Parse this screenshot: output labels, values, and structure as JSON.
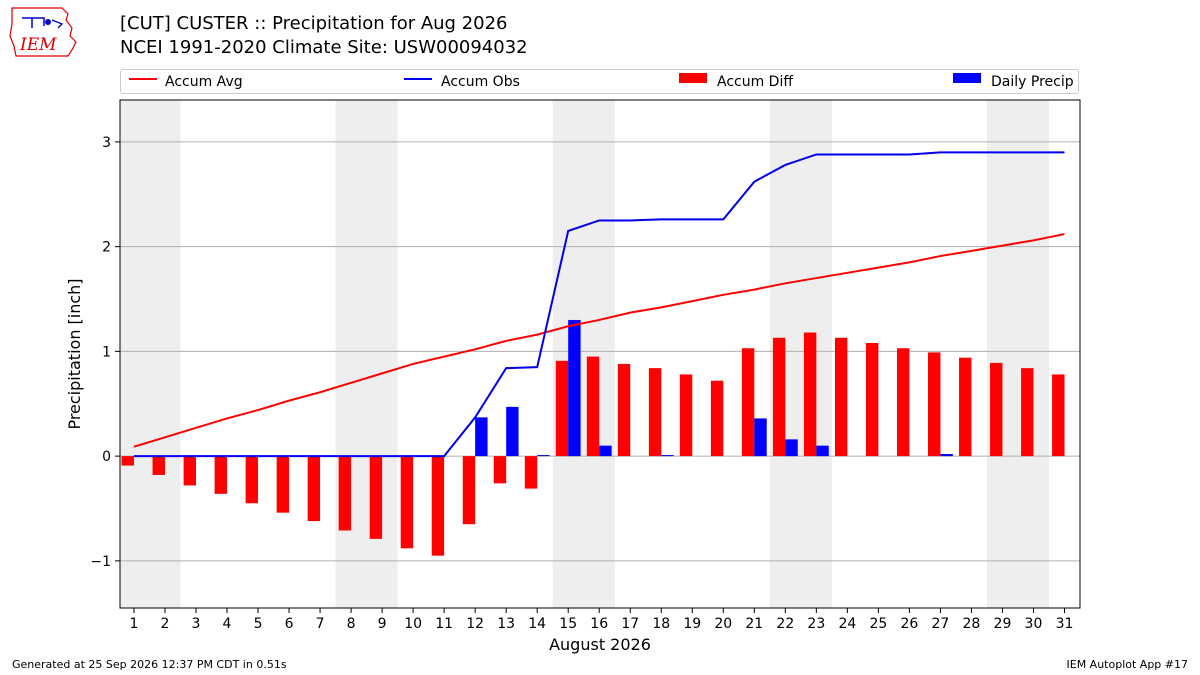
{
  "title_line1": "[CUT] CUSTER :: Precipitation for Aug 2026",
  "title_line2": "NCEI 1991-2020 Climate Site: USW00094032",
  "logo_text": "IEM",
  "footer_left": "Generated at 25 Sep 2026 12:37 PM CDT in 0.51s",
  "footer_right": "IEM Autoplot App #17",
  "colors": {
    "accum_avg": "#ff0000",
    "accum_obs": "#0000ee",
    "accum_diff": "#ff0000",
    "daily_precip": "#0000ff",
    "weekend_shade": "#eeeeee",
    "grid": "#b0b0b0"
  },
  "chart_data": {
    "type": "bar",
    "xlabel": "August 2026",
    "ylabel": "Precipitation [inch]",
    "ylim": [
      -1.45,
      3.4
    ],
    "yticks": [
      -1,
      0,
      1,
      2,
      3
    ],
    "ytick_labels": [
      "−1",
      "0",
      "1",
      "2",
      "3"
    ],
    "grid": true,
    "legend": "top",
    "x": [
      1,
      2,
      3,
      4,
      5,
      6,
      7,
      8,
      9,
      10,
      11,
      12,
      13,
      14,
      15,
      16,
      17,
      18,
      19,
      20,
      21,
      22,
      23,
      24,
      25,
      26,
      27,
      28,
      29,
      30,
      31
    ],
    "shaded_days": [
      1,
      2,
      8,
      9,
      15,
      16,
      22,
      23,
      29,
      30
    ],
    "series": [
      {
        "name": "Accum Avg",
        "kind": "line",
        "values": [
          0.09,
          0.18,
          0.27,
          0.36,
          0.44,
          0.53,
          0.61,
          0.7,
          0.79,
          0.88,
          0.95,
          1.02,
          1.1,
          1.16,
          1.24,
          1.3,
          1.37,
          1.42,
          1.48,
          1.54,
          1.59,
          1.65,
          1.7,
          1.75,
          1.8,
          1.85,
          1.91,
          1.96,
          2.01,
          2.06,
          2.12
        ]
      },
      {
        "name": "Accum Obs",
        "kind": "line",
        "values": [
          0.0,
          0.0,
          0.0,
          0.0,
          0.0,
          0.0,
          0.0,
          0.0,
          0.0,
          0.0,
          0.0,
          0.37,
          0.84,
          0.85,
          2.15,
          2.25,
          2.25,
          2.26,
          2.26,
          2.26,
          2.62,
          2.78,
          2.88,
          2.88,
          2.88,
          2.88,
          2.9,
          2.9,
          2.9,
          2.9,
          2.9
        ]
      },
      {
        "name": "Accum Diff",
        "kind": "bar",
        "values": [
          -0.09,
          -0.18,
          -0.28,
          -0.36,
          -0.45,
          -0.54,
          -0.62,
          -0.71,
          -0.79,
          -0.88,
          -0.95,
          -0.65,
          -0.26,
          -0.31,
          0.91,
          0.95,
          0.88,
          0.84,
          0.78,
          0.72,
          1.03,
          1.13,
          1.18,
          1.13,
          1.08,
          1.03,
          0.99,
          0.94,
          0.89,
          0.84,
          0.78
        ]
      },
      {
        "name": "Daily Precip",
        "kind": "bar",
        "values": [
          0,
          0,
          0,
          0,
          0,
          0,
          0,
          0,
          0,
          0,
          0,
          0.37,
          0.47,
          0.01,
          1.3,
          0.1,
          0,
          0.01,
          0,
          0,
          0.36,
          0.16,
          0.1,
          0,
          0,
          0,
          0.02,
          0,
          0,
          0,
          0
        ]
      }
    ]
  }
}
